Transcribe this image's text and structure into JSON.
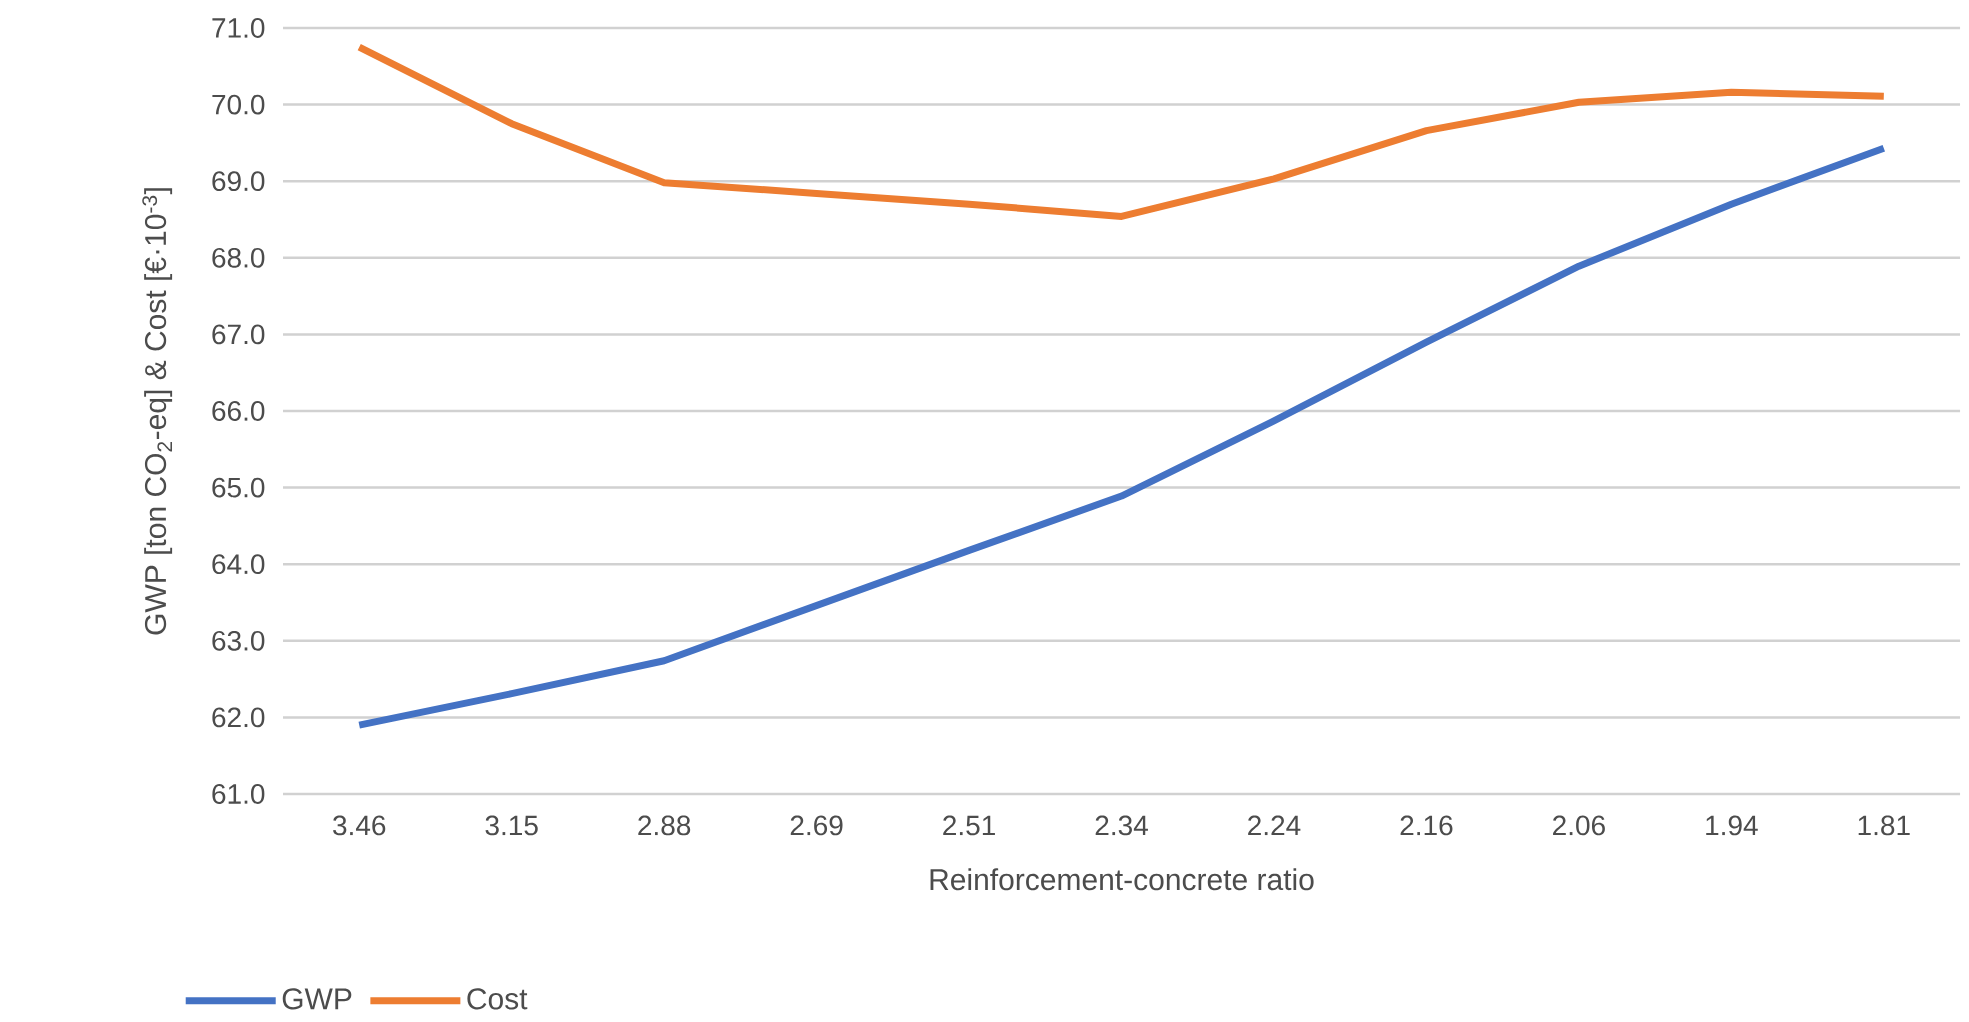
{
  "chart_data": {
    "type": "line",
    "xlabel": "Reinforcement-concrete ratio",
    "ylabel": "GWP [ton CO$_{2}$-eq] & Cost [€·10$^{-3}$]",
    "categories": [
      "3.46",
      "3.15",
      "2.88",
      "2.69",
      "2.51",
      "2.34",
      "2.24",
      "2.16",
      "2.06",
      "1.94",
      "1.81"
    ],
    "series": [
      {
        "name": "GWP",
        "color": "#4472c4",
        "values": [
          61.9,
          62.31,
          62.74,
          63.46,
          64.18,
          64.89,
          65.87,
          66.9,
          67.89,
          68.7,
          69.43
        ]
      },
      {
        "name": "Cost",
        "color": "#ed7d31",
        "values": [
          70.75,
          69.75,
          68.98,
          68.84,
          68.7,
          68.54,
          69.03,
          69.66,
          70.03,
          70.16,
          70.11
        ]
      }
    ],
    "ylim": [
      61,
      71
    ],
    "yticks": [
      {
        "value": 61,
        "label": "61.0"
      },
      {
        "value": 62,
        "label": "62.0"
      },
      {
        "value": 63,
        "label": "63.0"
      },
      {
        "value": 64,
        "label": "64.0"
      },
      {
        "value": 65,
        "label": "65.0"
      },
      {
        "value": 66,
        "label": "66.0"
      },
      {
        "value": 67,
        "label": "67.0"
      },
      {
        "value": 68,
        "label": "68.0"
      },
      {
        "value": 69,
        "label": "69.0"
      },
      {
        "value": 70,
        "label": "70.0"
      },
      {
        "value": 71,
        "label": "71.0"
      }
    ],
    "grid": "y",
    "legend": "bottom left",
    "marker": "none",
    "line_style": "solid"
  }
}
